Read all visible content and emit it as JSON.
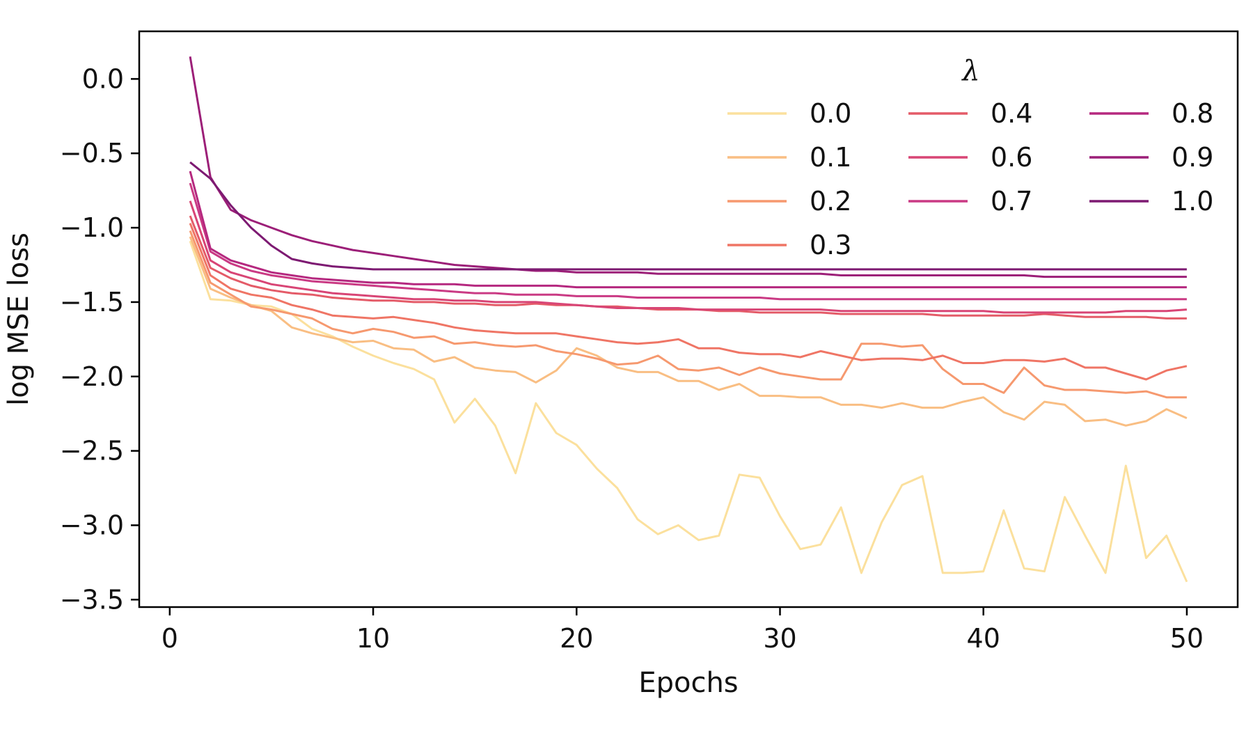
{
  "chart_data": {
    "type": "line",
    "title": "",
    "xlabel": "Epochs",
    "ylabel": "log MSE loss",
    "xlim": [
      -1.5,
      52.5
    ],
    "ylim": [
      -3.55,
      0.32
    ],
    "xticks": [
      0,
      10,
      20,
      30,
      40,
      50
    ],
    "yticks": [
      0.0,
      -0.5,
      -1.0,
      -1.5,
      -2.0,
      -2.5,
      -3.0,
      -3.5
    ],
    "xtick_labels": [
      "0",
      "10",
      "20",
      "30",
      "40",
      "50"
    ],
    "ytick_labels": [
      "0.0",
      "−0.5",
      "−1.0",
      "−1.5",
      "−2.0",
      "−2.5",
      "−3.0",
      "−3.5"
    ],
    "grid": false,
    "legend": {
      "title": "λ",
      "placement": "top-right",
      "columns": 3
    },
    "x": [
      1,
      2,
      3,
      4,
      5,
      6,
      7,
      8,
      9,
      10,
      11,
      12,
      13,
      14,
      15,
      16,
      17,
      18,
      19,
      20,
      21,
      22,
      23,
      24,
      25,
      26,
      27,
      28,
      29,
      30,
      31,
      32,
      33,
      34,
      35,
      36,
      37,
      38,
      39,
      40,
      41,
      42,
      43,
      44,
      45,
      46,
      47,
      48,
      49,
      50
    ],
    "series": [
      {
        "name": "0.0",
        "color": "#fbe09d",
        "values": [
          -1.09,
          -1.48,
          -1.49,
          -1.52,
          -1.53,
          -1.58,
          -1.68,
          -1.73,
          -1.8,
          -1.86,
          -1.91,
          -1.95,
          -2.02,
          -2.31,
          -2.15,
          -2.33,
          -2.65,
          -2.18,
          -2.38,
          -2.46,
          -2.62,
          -2.75,
          -2.96,
          -3.06,
          -3.0,
          -3.1,
          -3.07,
          -2.66,
          -2.68,
          -2.94,
          -3.16,
          -3.13,
          -2.88,
          -3.32,
          -2.98,
          -2.73,
          -2.67,
          -3.32,
          -3.32,
          -3.31,
          -2.9,
          -3.29,
          -3.31,
          -2.81,
          -3.07,
          -3.32,
          -2.6,
          -3.22,
          -3.07,
          -3.38
        ]
      },
      {
        "name": "0.1",
        "color": "#f9be83",
        "values": [
          -1.06,
          -1.41,
          -1.47,
          -1.52,
          -1.56,
          -1.67,
          -1.71,
          -1.74,
          -1.77,
          -1.76,
          -1.81,
          -1.82,
          -1.9,
          -1.87,
          -1.94,
          -1.96,
          -1.97,
          -2.04,
          -1.96,
          -1.81,
          -1.86,
          -1.94,
          -1.97,
          -1.97,
          -2.03,
          -2.03,
          -2.09,
          -2.05,
          -2.13,
          -2.13,
          -2.14,
          -2.14,
          -2.19,
          -2.19,
          -2.21,
          -2.18,
          -2.21,
          -2.21,
          -2.17,
          -2.14,
          -2.24,
          -2.29,
          -2.17,
          -2.19,
          -2.3,
          -2.29,
          -2.33,
          -2.3,
          -2.22,
          -2.28
        ]
      },
      {
        "name": "0.2",
        "color": "#f6996f",
        "values": [
          -1.02,
          -1.37,
          -1.45,
          -1.53,
          -1.55,
          -1.58,
          -1.61,
          -1.68,
          -1.71,
          -1.68,
          -1.7,
          -1.74,
          -1.73,
          -1.78,
          -1.77,
          -1.79,
          -1.8,
          -1.79,
          -1.83,
          -1.85,
          -1.88,
          -1.92,
          -1.91,
          -1.86,
          -1.95,
          -1.96,
          -1.94,
          -1.99,
          -1.94,
          -1.98,
          -2.0,
          -2.02,
          -2.02,
          -1.78,
          -1.78,
          -1.8,
          -1.79,
          -1.95,
          -2.05,
          -2.05,
          -2.11,
          -1.94,
          -2.06,
          -2.09,
          -2.09,
          -2.1,
          -2.11,
          -2.1,
          -2.14,
          -2.14
        ]
      },
      {
        "name": "0.3",
        "color": "#ef7565",
        "values": [
          -0.97,
          -1.32,
          -1.41,
          -1.45,
          -1.47,
          -1.52,
          -1.55,
          -1.59,
          -1.6,
          -1.61,
          -1.6,
          -1.62,
          -1.64,
          -1.67,
          -1.69,
          -1.7,
          -1.71,
          -1.71,
          -1.71,
          -1.73,
          -1.75,
          -1.77,
          -1.78,
          -1.77,
          -1.75,
          -1.81,
          -1.81,
          -1.84,
          -1.85,
          -1.85,
          -1.87,
          -1.83,
          -1.86,
          -1.89,
          -1.88,
          -1.88,
          -1.89,
          -1.86,
          -1.91,
          -1.91,
          -1.89,
          -1.89,
          -1.9,
          -1.88,
          -1.94,
          -1.94,
          -1.98,
          -2.02,
          -1.96,
          -1.93
        ]
      },
      {
        "name": "0.4",
        "color": "#e45b68",
        "values": [
          -0.92,
          -1.27,
          -1.34,
          -1.39,
          -1.42,
          -1.44,
          -1.45,
          -1.47,
          -1.48,
          -1.49,
          -1.49,
          -1.5,
          -1.5,
          -1.51,
          -1.51,
          -1.52,
          -1.52,
          -1.51,
          -1.52,
          -1.52,
          -1.53,
          -1.53,
          -1.54,
          -1.55,
          -1.55,
          -1.55,
          -1.56,
          -1.56,
          -1.57,
          -1.57,
          -1.57,
          -1.57,
          -1.58,
          -1.58,
          -1.58,
          -1.58,
          -1.58,
          -1.59,
          -1.59,
          -1.59,
          -1.59,
          -1.59,
          -1.58,
          -1.59,
          -1.6,
          -1.6,
          -1.6,
          -1.6,
          -1.61,
          -1.61
        ]
      },
      {
        "name": "0.6",
        "color": "#d84575",
        "values": [
          -0.82,
          -1.22,
          -1.3,
          -1.34,
          -1.38,
          -1.4,
          -1.42,
          -1.44,
          -1.45,
          -1.46,
          -1.47,
          -1.48,
          -1.48,
          -1.49,
          -1.49,
          -1.5,
          -1.5,
          -1.5,
          -1.51,
          -1.52,
          -1.53,
          -1.54,
          -1.54,
          -1.54,
          -1.54,
          -1.55,
          -1.55,
          -1.55,
          -1.55,
          -1.55,
          -1.55,
          -1.55,
          -1.56,
          -1.56,
          -1.56,
          -1.56,
          -1.56,
          -1.56,
          -1.56,
          -1.56,
          -1.57,
          -1.57,
          -1.57,
          -1.57,
          -1.57,
          -1.57,
          -1.56,
          -1.56,
          -1.56,
          -1.55
        ]
      },
      {
        "name": "0.7",
        "color": "#ca3a84",
        "values": [
          -0.7,
          -1.16,
          -1.24,
          -1.29,
          -1.32,
          -1.34,
          -1.36,
          -1.37,
          -1.38,
          -1.39,
          -1.4,
          -1.41,
          -1.42,
          -1.43,
          -1.44,
          -1.44,
          -1.45,
          -1.45,
          -1.45,
          -1.46,
          -1.46,
          -1.46,
          -1.47,
          -1.47,
          -1.47,
          -1.47,
          -1.47,
          -1.47,
          -1.47,
          -1.48,
          -1.48,
          -1.48,
          -1.48,
          -1.48,
          -1.48,
          -1.48,
          -1.48,
          -1.48,
          -1.48,
          -1.48,
          -1.48,
          -1.48,
          -1.48,
          -1.48,
          -1.48,
          -1.48,
          -1.48,
          -1.48,
          -1.48,
          -1.48
        ]
      },
      {
        "name": "0.8",
        "color": "#b5287f",
        "values": [
          -0.62,
          -1.14,
          -1.22,
          -1.26,
          -1.3,
          -1.32,
          -1.34,
          -1.35,
          -1.36,
          -1.37,
          -1.37,
          -1.38,
          -1.38,
          -1.38,
          -1.39,
          -1.39,
          -1.39,
          -1.39,
          -1.39,
          -1.4,
          -1.4,
          -1.4,
          -1.4,
          -1.4,
          -1.4,
          -1.4,
          -1.4,
          -1.4,
          -1.4,
          -1.4,
          -1.4,
          -1.4,
          -1.4,
          -1.4,
          -1.4,
          -1.4,
          -1.4,
          -1.4,
          -1.4,
          -1.4,
          -1.4,
          -1.4,
          -1.4,
          -1.4,
          -1.4,
          -1.4,
          -1.4,
          -1.4,
          -1.4,
          -1.4
        ]
      },
      {
        "name": "0.9",
        "color": "#9c1f78",
        "values": [
          0.15,
          -0.66,
          -0.88,
          -0.95,
          -1.0,
          -1.05,
          -1.09,
          -1.12,
          -1.15,
          -1.17,
          -1.19,
          -1.21,
          -1.23,
          -1.25,
          -1.26,
          -1.27,
          -1.28,
          -1.29,
          -1.29,
          -1.3,
          -1.3,
          -1.3,
          -1.3,
          -1.31,
          -1.31,
          -1.31,
          -1.31,
          -1.31,
          -1.31,
          -1.31,
          -1.31,
          -1.31,
          -1.32,
          -1.32,
          -1.32,
          -1.32,
          -1.32,
          -1.32,
          -1.32,
          -1.32,
          -1.32,
          -1.32,
          -1.33,
          -1.33,
          -1.33,
          -1.33,
          -1.33,
          -1.33,
          -1.33,
          -1.33
        ]
      },
      {
        "name": "1.0",
        "color": "#7d1a72",
        "values": [
          -0.56,
          -0.67,
          -0.85,
          -1.0,
          -1.12,
          -1.21,
          -1.24,
          -1.26,
          -1.27,
          -1.28,
          -1.28,
          -1.28,
          -1.28,
          -1.28,
          -1.28,
          -1.28,
          -1.28,
          -1.28,
          -1.28,
          -1.28,
          -1.28,
          -1.28,
          -1.28,
          -1.28,
          -1.28,
          -1.28,
          -1.28,
          -1.28,
          -1.28,
          -1.28,
          -1.28,
          -1.28,
          -1.28,
          -1.28,
          -1.28,
          -1.28,
          -1.28,
          -1.28,
          -1.28,
          -1.28,
          -1.28,
          -1.28,
          -1.28,
          -1.28,
          -1.28,
          -1.28,
          -1.28,
          -1.28,
          -1.28,
          -1.28
        ]
      }
    ]
  }
}
